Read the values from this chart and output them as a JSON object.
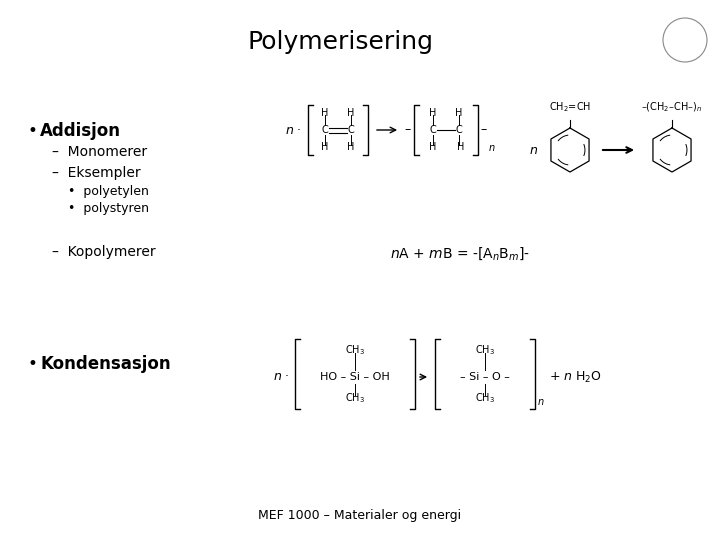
{
  "title": "Polymerisering",
  "background_color": "#ffffff",
  "title_fontsize": 18,
  "footer": "MEF 1000 – Materialer og energi",
  "footer_fontsize": 9,
  "text_color": "#000000",
  "bullet1": "Addisjon",
  "bullet2": "Kondensasjon"
}
